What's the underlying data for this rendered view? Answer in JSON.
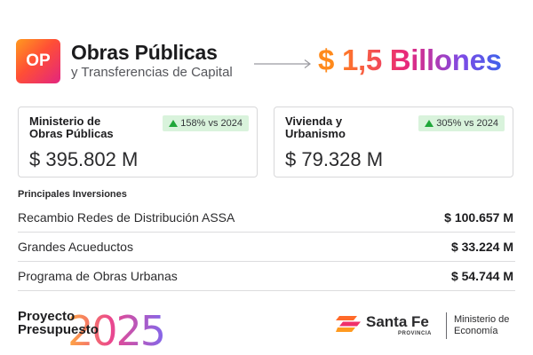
{
  "header": {
    "badge": "OP",
    "title": "Obras Públicas",
    "subtitle": "y Transferencias de Capital",
    "amount_currency": "$",
    "amount_value": "1,5 Billones"
  },
  "cards": [
    {
      "name_line1": "Ministerio de",
      "name_line2": "Obras Públicas",
      "change": "158% vs 2024",
      "value": "$ 395.802 M"
    },
    {
      "name_line1": "Vivienda y",
      "name_line2": "Urbanismo",
      "change": "305% vs 2024",
      "value": "$ 79.328 M"
    }
  ],
  "investments": {
    "title": "Principales Inversiones",
    "rows": [
      {
        "label": "Recambio Redes de Distribución ASSA",
        "value": "$ 100.657 M"
      },
      {
        "label": "Grandes Acueductos",
        "value": "$ 33.224 M"
      },
      {
        "label": "Programa de Obras Urbanas",
        "value": "$ 54.744 M"
      }
    ]
  },
  "footer": {
    "project_line1": "Proyecto",
    "project_line2": "Presupuesto",
    "year": "2025",
    "org_name": "Santa Fe",
    "org_sub": "PROVINCIA",
    "ministry_line1": "Ministerio de",
    "ministry_line2": "Economía"
  },
  "colors": {
    "accent_orange": "#ff8a1c",
    "accent_pink": "#e8287a",
    "accent_purple": "#6d4de8",
    "positive_green": "#20a73a",
    "badge_bg": "#d9f3dc"
  },
  "icons": [
    "arrow-right-icon",
    "trend-up-icon",
    "santa-fe-logo-icon"
  ]
}
